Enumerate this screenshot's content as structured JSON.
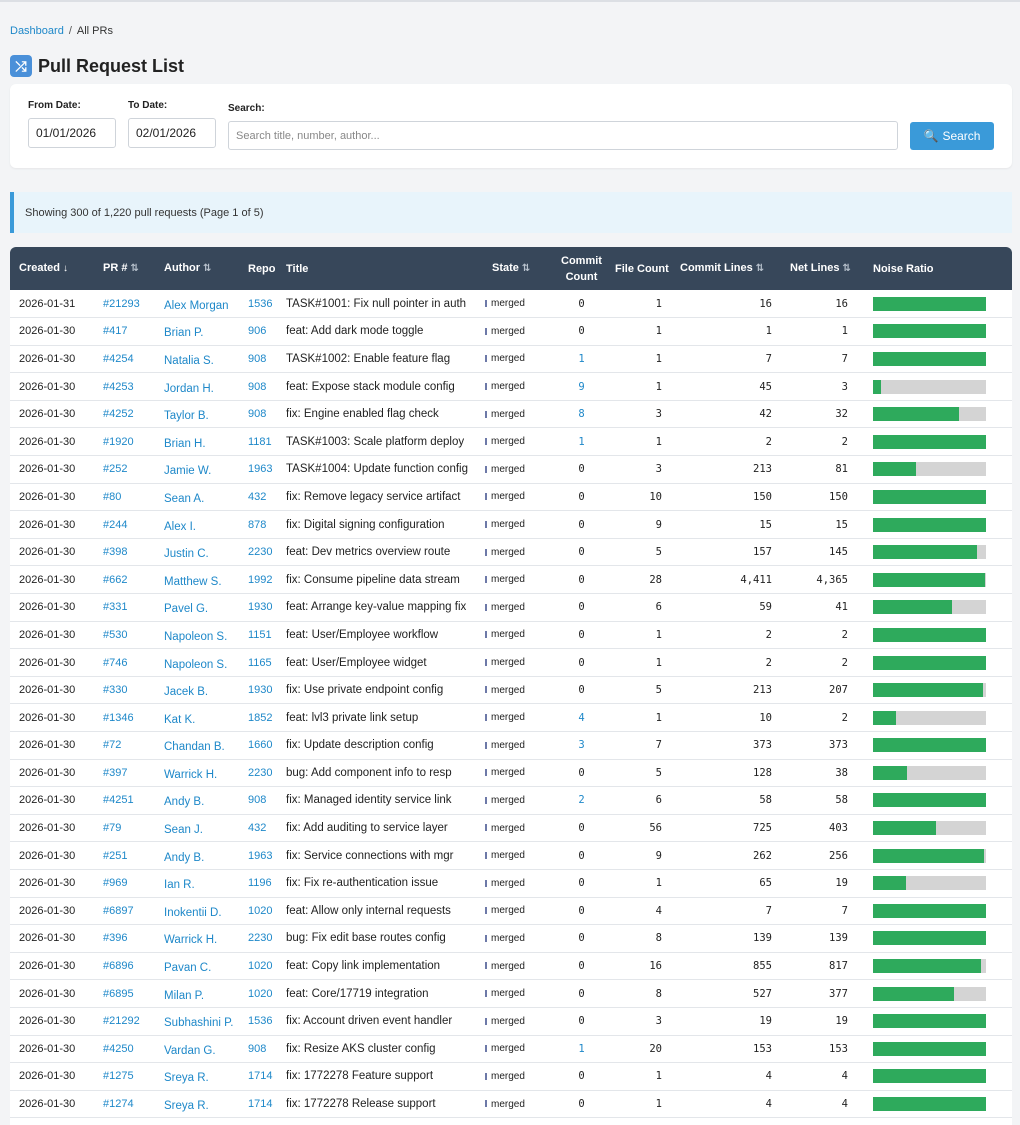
{
  "breadcrumb": {
    "home": "Dashboard",
    "separator": "/",
    "current": "All PRs"
  },
  "page": {
    "title": "Pull Request List",
    "icon": "shuffle-icon"
  },
  "filters": {
    "from_label": "From Date:",
    "from_value": "01/01/2026",
    "to_label": "To Date:",
    "to_value": "02/01/2026",
    "search_label": "Search:",
    "search_placeholder": "Search title, number, author...",
    "search_button": "Search",
    "search_button_icon": "magnifier-icon"
  },
  "info": {
    "text": "Showing 300 of 1,220 pull requests (Page 1 of 5)"
  },
  "colors": {
    "header_bg": "#37475a",
    "accent": "#3a9ad9",
    "ratio_green": "#2eaa5c",
    "ratio_gray": "#d4d4d4"
  },
  "table": {
    "headers": {
      "created": "Created",
      "pr": "PR #",
      "author": "Author",
      "repo": "Repo",
      "title": "Title",
      "state": "State",
      "commit_count": "Commit Count",
      "file_count": "File Count",
      "commit_lines": "Commit Lines",
      "net_lines": "Net Lines",
      "noise_ratio": "Noise Ratio"
    },
    "sort_active": "↓",
    "sort_idle": "⇅",
    "rows": [
      {
        "created": "2026-01-31",
        "pr": "#21293",
        "author": "Alex Morgan",
        "repo": "1536",
        "title": "TASK#1001: Fix null pointer in auth",
        "state": "merged",
        "commits": "0",
        "files": "1",
        "commit_lines": "16",
        "net_lines": "16",
        "ratio": 1.0
      },
      {
        "created": "2026-01-30",
        "pr": "#417",
        "author": "Brian P.",
        "repo": "906",
        "title": "feat: Add dark mode toggle",
        "state": "merged",
        "commits": "0",
        "files": "1",
        "commit_lines": "1",
        "net_lines": "1",
        "ratio": 1.0
      },
      {
        "created": "2026-01-30",
        "pr": "#4254",
        "author": "Natalia S.",
        "repo": "908",
        "title": "TASK#1002: Enable feature flag",
        "state": "merged",
        "commits": "1",
        "files": "1",
        "commit_lines": "7",
        "net_lines": "7",
        "ratio": 1.0
      },
      {
        "created": "2026-01-30",
        "pr": "#4253",
        "author": "Jordan H.",
        "repo": "908",
        "title": "feat: Expose stack module config",
        "state": "merged",
        "commits": "9",
        "files": "1",
        "commit_lines": "45",
        "net_lines": "3",
        "ratio": 0.07
      },
      {
        "created": "2026-01-30",
        "pr": "#4252",
        "author": "Taylor B.",
        "repo": "908",
        "title": "fix: Engine enabled flag check",
        "state": "merged",
        "commits": "8",
        "files": "3",
        "commit_lines": "42",
        "net_lines": "32",
        "ratio": 0.76
      },
      {
        "created": "2026-01-30",
        "pr": "#1920",
        "author": "Brian H.",
        "repo": "1181",
        "title": "TASK#1003: Scale platform deploy",
        "state": "merged",
        "commits": "1",
        "files": "1",
        "commit_lines": "2",
        "net_lines": "2",
        "ratio": 1.0
      },
      {
        "created": "2026-01-30",
        "pr": "#252",
        "author": "Jamie W.",
        "repo": "1963",
        "title": "TASK#1004: Update function config",
        "state": "merged",
        "commits": "0",
        "files": "3",
        "commit_lines": "213",
        "net_lines": "81",
        "ratio": 0.38
      },
      {
        "created": "2026-01-30",
        "pr": "#80",
        "author": "Sean A.",
        "repo": "432",
        "title": "fix: Remove legacy service artifact",
        "state": "merged",
        "commits": "0",
        "files": "10",
        "commit_lines": "150",
        "net_lines": "150",
        "ratio": 1.0
      },
      {
        "created": "2026-01-30",
        "pr": "#244",
        "author": "Alex I.",
        "repo": "878",
        "title": "fix: Digital signing configuration",
        "state": "merged",
        "commits": "0",
        "files": "9",
        "commit_lines": "15",
        "net_lines": "15",
        "ratio": 1.0
      },
      {
        "created": "2026-01-30",
        "pr": "#398",
        "author": "Justin C.",
        "repo": "2230",
        "title": "feat: Dev metrics overview route",
        "state": "merged",
        "commits": "0",
        "files": "5",
        "commit_lines": "157",
        "net_lines": "145",
        "ratio": 0.92
      },
      {
        "created": "2026-01-30",
        "pr": "#662",
        "author": "Matthew S.",
        "repo": "1992",
        "title": "fix: Consume pipeline data stream",
        "state": "merged",
        "commits": "0",
        "files": "28",
        "commit_lines": "4,411",
        "net_lines": "4,365",
        "ratio": 0.99
      },
      {
        "created": "2026-01-30",
        "pr": "#331",
        "author": "Pavel G.",
        "repo": "1930",
        "title": "feat: Arrange key-value mapping fix",
        "state": "merged",
        "commits": "0",
        "files": "6",
        "commit_lines": "59",
        "net_lines": "41",
        "ratio": 0.7
      },
      {
        "created": "2026-01-30",
        "pr": "#530",
        "author": "Napoleon S.",
        "repo": "1151",
        "title": "feat: User/Employee workflow",
        "state": "merged",
        "commits": "0",
        "files": "1",
        "commit_lines": "2",
        "net_lines": "2",
        "ratio": 1.0
      },
      {
        "created": "2026-01-30",
        "pr": "#746",
        "author": "Napoleon S.",
        "repo": "1165",
        "title": "feat: User/Employee widget",
        "state": "merged",
        "commits": "0",
        "files": "1",
        "commit_lines": "2",
        "net_lines": "2",
        "ratio": 1.0
      },
      {
        "created": "2026-01-30",
        "pr": "#330",
        "author": "Jacek B.",
        "repo": "1930",
        "title": "fix: Use private endpoint config",
        "state": "merged",
        "commits": "0",
        "files": "5",
        "commit_lines": "213",
        "net_lines": "207",
        "ratio": 0.97
      },
      {
        "created": "2026-01-30",
        "pr": "#1346",
        "author": "Kat K.",
        "repo": "1852",
        "title": "feat: lvl3 private link setup",
        "state": "merged",
        "commits": "4",
        "files": "1",
        "commit_lines": "10",
        "net_lines": "2",
        "ratio": 0.2
      },
      {
        "created": "2026-01-30",
        "pr": "#72",
        "author": "Chandan B.",
        "repo": "1660",
        "title": "fix: Update description config",
        "state": "merged",
        "commits": "3",
        "files": "7",
        "commit_lines": "373",
        "net_lines": "373",
        "ratio": 1.0
      },
      {
        "created": "2026-01-30",
        "pr": "#397",
        "author": "Warrick H.",
        "repo": "2230",
        "title": "bug: Add component info to resp",
        "state": "merged",
        "commits": "0",
        "files": "5",
        "commit_lines": "128",
        "net_lines": "38",
        "ratio": 0.3
      },
      {
        "created": "2026-01-30",
        "pr": "#4251",
        "author": "Andy B.",
        "repo": "908",
        "title": "fix: Managed identity service link",
        "state": "merged",
        "commits": "2",
        "files": "6",
        "commit_lines": "58",
        "net_lines": "58",
        "ratio": 1.0
      },
      {
        "created": "2026-01-30",
        "pr": "#79",
        "author": "Sean J.",
        "repo": "432",
        "title": "fix: Add auditing to service layer",
        "state": "merged",
        "commits": "0",
        "files": "56",
        "commit_lines": "725",
        "net_lines": "403",
        "ratio": 0.56
      },
      {
        "created": "2026-01-30",
        "pr": "#251",
        "author": "Andy B.",
        "repo": "1963",
        "title": "fix: Service connections with mgr",
        "state": "merged",
        "commits": "0",
        "files": "9",
        "commit_lines": "262",
        "net_lines": "256",
        "ratio": 0.98
      },
      {
        "created": "2026-01-30",
        "pr": "#969",
        "author": "Ian R.",
        "repo": "1196",
        "title": "fix: Fix re-authentication issue",
        "state": "merged",
        "commits": "0",
        "files": "1",
        "commit_lines": "65",
        "net_lines": "19",
        "ratio": 0.29
      },
      {
        "created": "2026-01-30",
        "pr": "#6897",
        "author": "Inokentii D.",
        "repo": "1020",
        "title": "feat: Allow only internal requests",
        "state": "merged",
        "commits": "0",
        "files": "4",
        "commit_lines": "7",
        "net_lines": "7",
        "ratio": 1.0
      },
      {
        "created": "2026-01-30",
        "pr": "#396",
        "author": "Warrick H.",
        "repo": "2230",
        "title": "bug: Fix edit base routes config",
        "state": "merged",
        "commits": "0",
        "files": "8",
        "commit_lines": "139",
        "net_lines": "139",
        "ratio": 1.0
      },
      {
        "created": "2026-01-30",
        "pr": "#6896",
        "author": "Pavan C.",
        "repo": "1020",
        "title": "feat: Copy link implementation",
        "state": "merged",
        "commits": "0",
        "files": "16",
        "commit_lines": "855",
        "net_lines": "817",
        "ratio": 0.96
      },
      {
        "created": "2026-01-30",
        "pr": "#6895",
        "author": "Milan P.",
        "repo": "1020",
        "title": "feat: Core/17719 integration",
        "state": "merged",
        "commits": "0",
        "files": "8",
        "commit_lines": "527",
        "net_lines": "377",
        "ratio": 0.72
      },
      {
        "created": "2026-01-30",
        "pr": "#21292",
        "author": "Subhashini P.",
        "repo": "1536",
        "title": "fix: Account driven event handler",
        "state": "merged",
        "commits": "0",
        "files": "3",
        "commit_lines": "19",
        "net_lines": "19",
        "ratio": 1.0
      },
      {
        "created": "2026-01-30",
        "pr": "#4250",
        "author": "Vardan G.",
        "repo": "908",
        "title": "fix: Resize AKS cluster config",
        "state": "merged",
        "commits": "1",
        "files": "20",
        "commit_lines": "153",
        "net_lines": "153",
        "ratio": 1.0
      },
      {
        "created": "2026-01-30",
        "pr": "#1275",
        "author": "Sreya R.",
        "repo": "1714",
        "title": "fix: 1772278 Feature support",
        "state": "merged",
        "commits": "0",
        "files": "1",
        "commit_lines": "4",
        "net_lines": "4",
        "ratio": 1.0
      },
      {
        "created": "2026-01-30",
        "pr": "#1274",
        "author": "Sreya R.",
        "repo": "1714",
        "title": "fix: 1772278 Release support",
        "state": "merged",
        "commits": "0",
        "files": "1",
        "commit_lines": "4",
        "net_lines": "4",
        "ratio": 1.0
      }
    ]
  }
}
